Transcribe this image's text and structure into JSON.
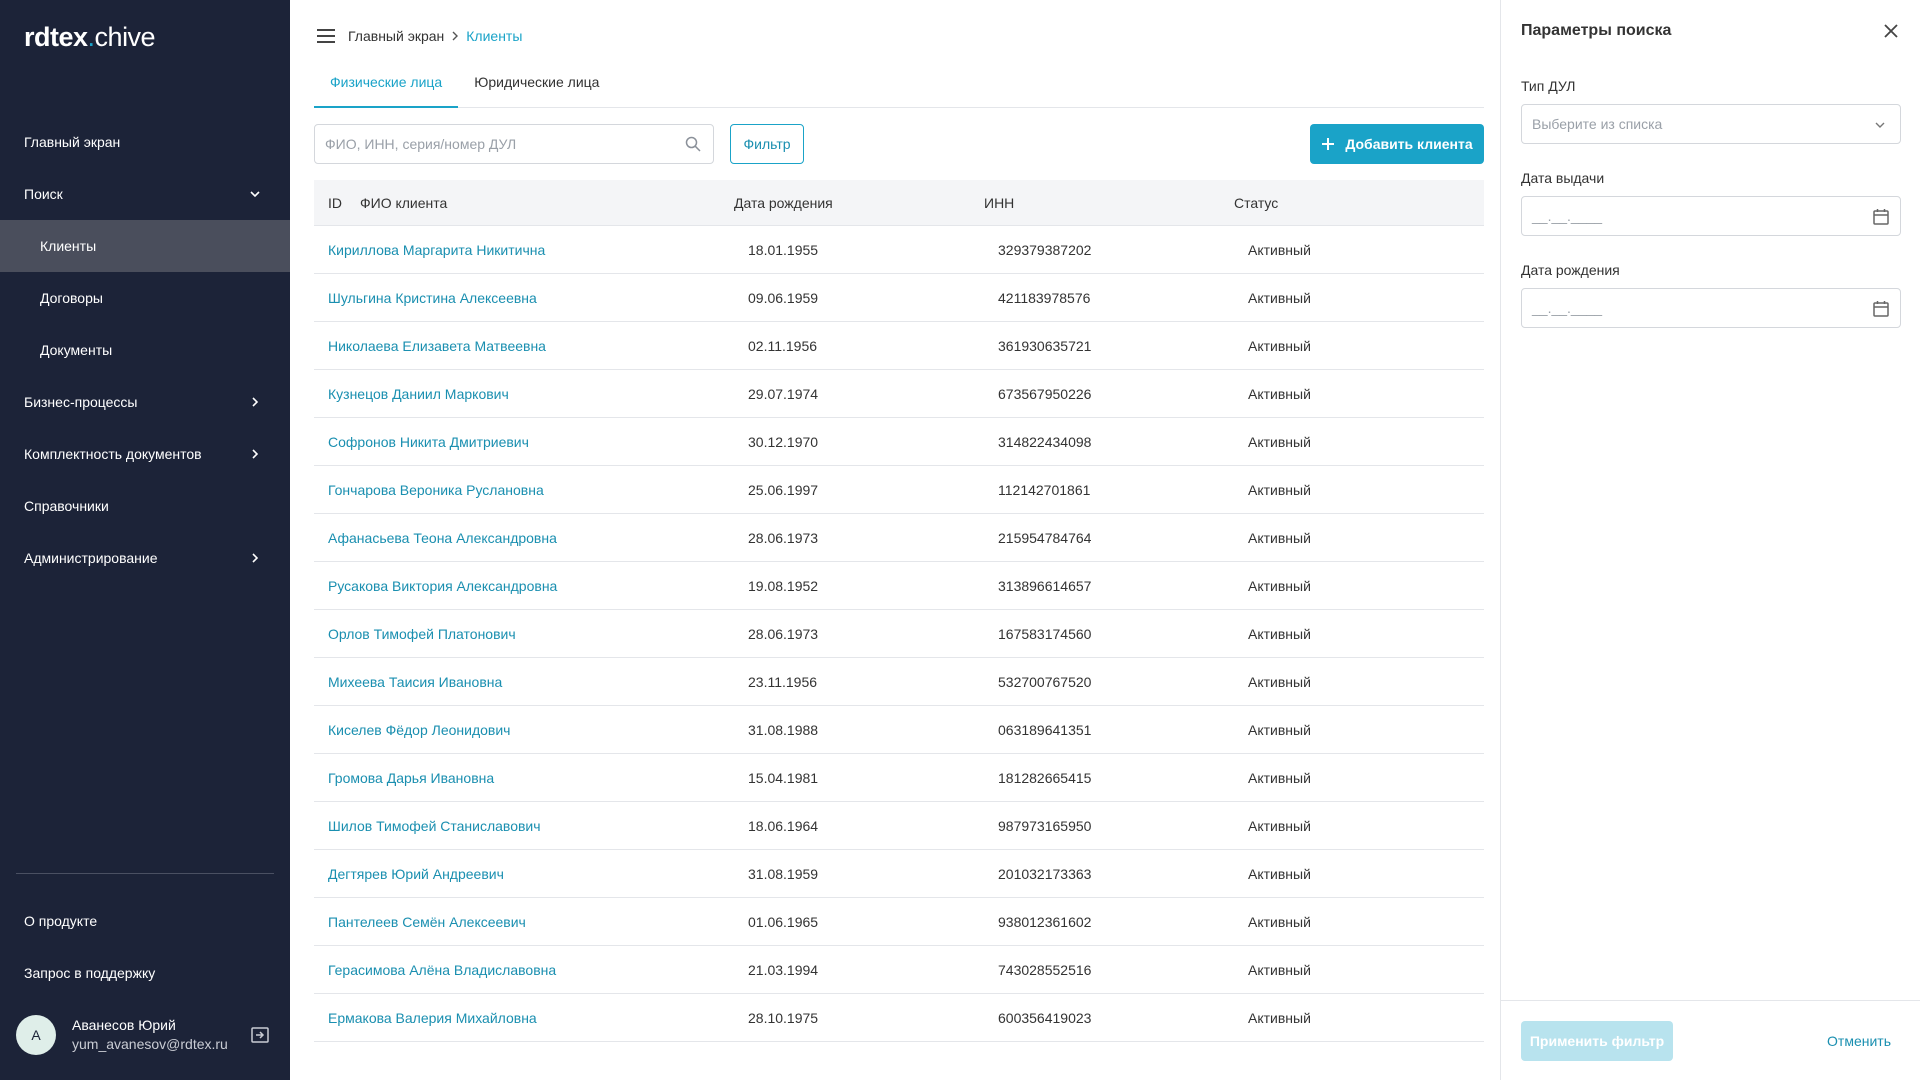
{
  "logo": {
    "part1": "rdtex",
    "dot": ".",
    "part2": "chive"
  },
  "sidebar": {
    "items": [
      {
        "label": "Главный экран"
      },
      {
        "label": "Поиск"
      },
      {
        "label": "Клиенты"
      },
      {
        "label": "Договоры"
      },
      {
        "label": "Документы"
      },
      {
        "label": "Бизнес-процессы"
      },
      {
        "label": "Комплектность документов"
      },
      {
        "label": "Справочники"
      },
      {
        "label": "Администрирование"
      }
    ],
    "bottom": [
      {
        "label": "О продукте"
      },
      {
        "label": "Запрос в поддержку"
      }
    ],
    "user": {
      "initial": "А",
      "name": "Аванесов Юрий",
      "email": "yum_avanesov@rdtex.ru"
    }
  },
  "breadcrumb": {
    "home": "Главный экран",
    "current": "Клиенты"
  },
  "tabs": [
    {
      "label": "Физические лица",
      "active": true
    },
    {
      "label": "Юридические лица",
      "active": false
    }
  ],
  "toolbar": {
    "search_placeholder": "ФИО, ИНН, серия/номер ДУЛ",
    "filter_label": "Фильтр",
    "add_label": "Добавить клиента"
  },
  "table": {
    "headers": {
      "id": "ID",
      "name": "ФИО клиента",
      "dob": "Дата рождения",
      "inn": "ИНН",
      "status": "Статус"
    },
    "rows": [
      {
        "name": "Кириллова Маргарита Никитична",
        "dob": "18.01.1955",
        "inn": "329379387202",
        "status": "Активный"
      },
      {
        "name": "Шульгина Кристина Алексеевна",
        "dob": "09.06.1959",
        "inn": "421183978576",
        "status": "Активный"
      },
      {
        "name": "Николаева Елизавета Матвеевна",
        "dob": "02.11.1956",
        "inn": "361930635721",
        "status": "Активный"
      },
      {
        "name": "Кузнецов Даниил Маркович",
        "dob": "29.07.1974",
        "inn": "673567950226",
        "status": "Активный"
      },
      {
        "name": "Софронов Никита Дмитриевич",
        "dob": "30.12.1970",
        "inn": "314822434098",
        "status": "Активный"
      },
      {
        "name": "Гончарова Вероника Руслановна",
        "dob": "25.06.1997",
        "inn": "112142701861",
        "status": "Активный"
      },
      {
        "name": "Афанасьева Теона Александровна",
        "dob": "28.06.1973",
        "inn": "215954784764",
        "status": "Активный"
      },
      {
        "name": "Русакова Виктория Александровна",
        "dob": "19.08.1952",
        "inn": "313896614657",
        "status": "Активный"
      },
      {
        "name": "Орлов Тимофей Платонович",
        "dob": "28.06.1973",
        "inn": "167583174560",
        "status": "Активный"
      },
      {
        "name": "Михеева Таисия Ивановна",
        "dob": "23.11.1956",
        "inn": "532700767520",
        "status": "Активный"
      },
      {
        "name": "Киселев Фёдор Леонидович",
        "dob": "31.08.1988",
        "inn": "063189641351",
        "status": "Активный"
      },
      {
        "name": "Громова Дарья Ивановна",
        "dob": "15.04.1981",
        "inn": "181282665415",
        "status": "Активный"
      },
      {
        "name": "Шилов Тимофей Станиславович",
        "dob": "18.06.1964",
        "inn": "987973165950",
        "status": "Активный"
      },
      {
        "name": "Дегтярев Юрий Андреевич",
        "dob": "31.08.1959",
        "inn": "201032173363",
        "status": "Активный"
      },
      {
        "name": "Пантелеев Семён Алексеевич",
        "dob": "01.06.1965",
        "inn": "938012361602",
        "status": "Активный"
      },
      {
        "name": "Герасимова Алёна Владиславовна",
        "dob": "21.03.1994",
        "inn": "743028552516",
        "status": "Активный"
      },
      {
        "name": "Ермакова Валерия Михайловна",
        "dob": "28.10.1975",
        "inn": "600356419023",
        "status": "Активный"
      }
    ]
  },
  "filter_panel": {
    "title": "Параметры поиска",
    "doc_type": {
      "label": "Тип ДУЛ",
      "placeholder": "Выберите из списка"
    },
    "issue_date": {
      "label": "Дата выдачи",
      "placeholder": "__.__.____"
    },
    "birth_date": {
      "label": "Дата рождения",
      "placeholder": "__.__.____"
    },
    "apply_label": "Применить фильтр",
    "cancel_label": "Отменить"
  },
  "colors": {
    "sidebar_bg": "#1c2338",
    "accent": "#1aa3c8",
    "active_item_bg": "#4a4e5c"
  }
}
